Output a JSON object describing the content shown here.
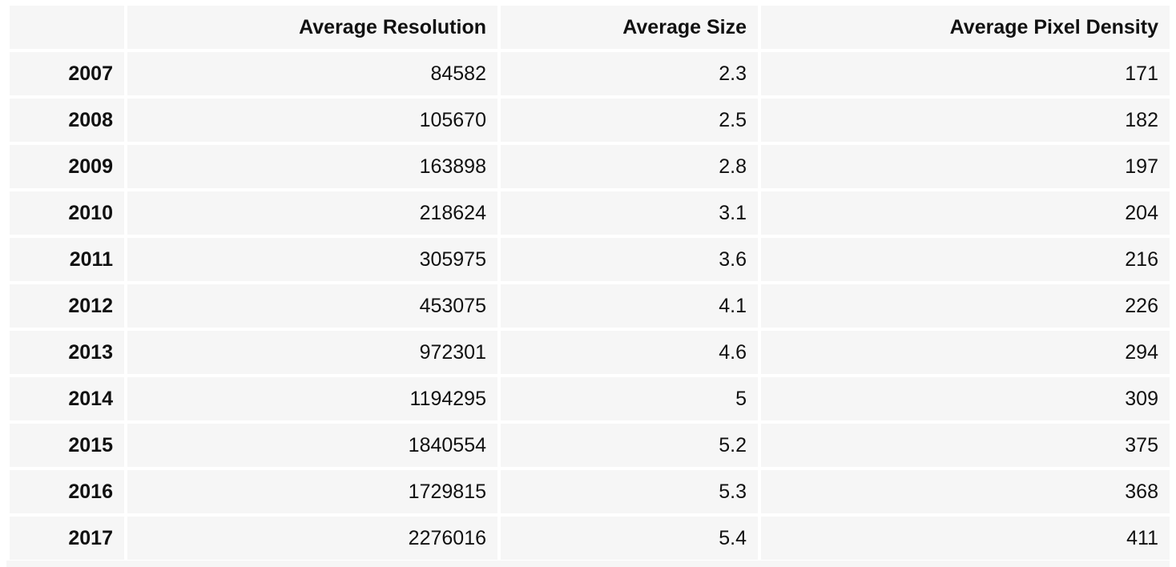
{
  "chart_data": {
    "type": "table",
    "columns": [
      "",
      "Average Resolution",
      "Average Size",
      "Average Pixel Density"
    ],
    "rows": [
      {
        "year": "2007",
        "resolution": "84582",
        "size": "2.3",
        "density": "171"
      },
      {
        "year": "2008",
        "resolution": "105670",
        "size": "2.5",
        "density": "182"
      },
      {
        "year": "2009",
        "resolution": "163898",
        "size": "2.8",
        "density": "197"
      },
      {
        "year": "2010",
        "resolution": "218624",
        "size": "3.1",
        "density": "204"
      },
      {
        "year": "2011",
        "resolution": "305975",
        "size": "3.6",
        "density": "216"
      },
      {
        "year": "2012",
        "resolution": "453075",
        "size": "4.1",
        "density": "226"
      },
      {
        "year": "2013",
        "resolution": "972301",
        "size": "4.6",
        "density": "294"
      },
      {
        "year": "2014",
        "resolution": "1194295",
        "size": "5",
        "density": "309"
      },
      {
        "year": "2015",
        "resolution": "1840554",
        "size": "5.2",
        "density": "375"
      },
      {
        "year": "2016",
        "resolution": "1729815",
        "size": "5.3",
        "density": "368"
      },
      {
        "year": "2017",
        "resolution": "2276016",
        "size": "5.4",
        "density": "411"
      }
    ]
  }
}
